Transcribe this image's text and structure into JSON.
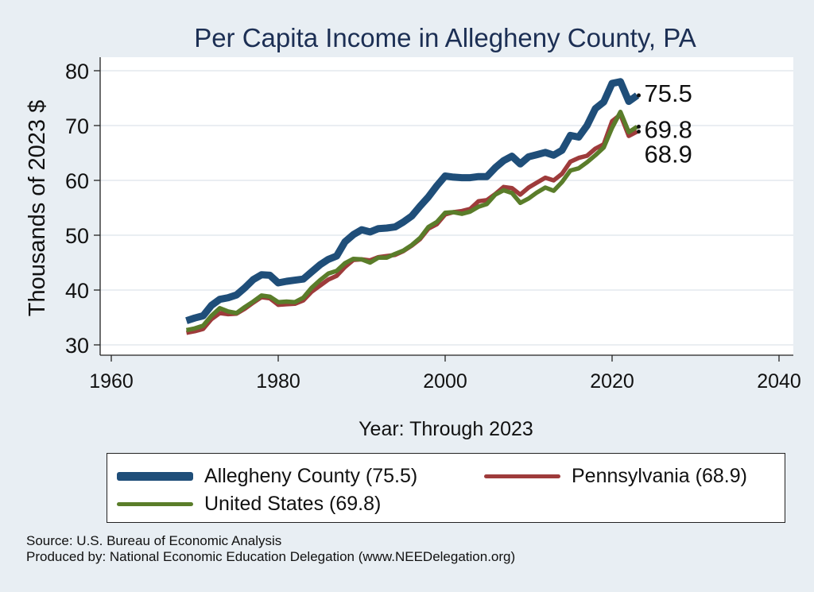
{
  "chart_data": {
    "type": "line",
    "title": "Per Capita Income in Allegheny County, PA",
    "xlabel": "Year: Through 2023",
    "ylabel": "Thousands of 2023 $",
    "xlim": [
      1960,
      2040
    ],
    "ylim": [
      30,
      80
    ],
    "xticks": [
      1960,
      1980,
      2000,
      2020,
      2040
    ],
    "yticks": [
      30,
      40,
      50,
      60,
      70,
      80
    ],
    "grid": true,
    "legend_position": "bottom",
    "x": [
      1969,
      1970,
      1971,
      1972,
      1973,
      1974,
      1975,
      1976,
      1977,
      1978,
      1979,
      1980,
      1981,
      1982,
      1983,
      1984,
      1985,
      1986,
      1987,
      1988,
      1989,
      1990,
      1991,
      1992,
      1993,
      1994,
      1995,
      1996,
      1997,
      1998,
      1999,
      2000,
      2001,
      2002,
      2003,
      2004,
      2005,
      2006,
      2007,
      2008,
      2009,
      2010,
      2011,
      2012,
      2013,
      2014,
      2015,
      2016,
      2017,
      2018,
      2019,
      2020,
      2021,
      2022,
      2023
    ],
    "series": [
      {
        "name": "Allegheny County (75.5)",
        "color": "#1f4e79",
        "values": [
          34.4,
          34.9,
          35.3,
          37.2,
          38.3,
          38.6,
          39.1,
          40.4,
          41.9,
          42.8,
          42.7,
          41.3,
          41.6,
          41.8,
          42.0,
          43.3,
          44.6,
          45.6,
          46.2,
          48.8,
          50.1,
          51.0,
          50.6,
          51.2,
          51.3,
          51.5,
          52.4,
          53.5,
          55.3,
          57.0,
          59.0,
          60.8,
          60.6,
          60.5,
          60.5,
          60.7,
          60.7,
          62.3,
          63.6,
          64.4,
          63.0,
          64.3,
          64.7,
          65.1,
          64.6,
          65.5,
          68.2,
          67.9,
          70.0,
          73.1,
          74.3,
          77.7,
          78.0,
          74.4,
          75.5
        ],
        "end_label": "75.5"
      },
      {
        "name": "Pennsylvania (68.9)",
        "color": "#9e3b3b",
        "values": [
          32.2,
          32.5,
          32.9,
          34.7,
          35.8,
          35.6,
          35.7,
          36.6,
          37.7,
          38.7,
          38.5,
          37.3,
          37.4,
          37.5,
          38.1,
          39.7,
          40.8,
          41.9,
          42.6,
          44.2,
          45.5,
          45.6,
          45.4,
          46.0,
          46.2,
          46.4,
          47.1,
          48.1,
          49.3,
          51.2,
          52.0,
          53.8,
          54.2,
          54.4,
          54.8,
          56.2,
          56.4,
          57.5,
          58.8,
          58.6,
          57.4,
          58.7,
          59.6,
          60.5,
          60.0,
          61.2,
          63.4,
          64.1,
          64.5,
          65.8,
          66.6,
          70.8,
          72.0,
          68.1,
          68.9
        ],
        "end_label": "68.9"
      },
      {
        "name": "United States (69.8)",
        "color": "#5a7d2a",
        "values": [
          32.7,
          33.0,
          33.5,
          35.3,
          36.7,
          36.1,
          35.8,
          36.9,
          37.9,
          39.0,
          38.8,
          37.8,
          37.9,
          37.8,
          38.6,
          40.4,
          41.8,
          43.0,
          43.5,
          44.9,
          45.7,
          45.6,
          45.0,
          45.9,
          45.9,
          46.6,
          47.2,
          48.2,
          49.5,
          51.5,
          52.4,
          54.1,
          54.2,
          53.9,
          54.3,
          55.2,
          55.7,
          57.4,
          58.2,
          57.7,
          55.9,
          56.7,
          57.8,
          58.7,
          58.1,
          59.7,
          61.8,
          62.2,
          63.3,
          64.6,
          66.0,
          69.6,
          72.5,
          68.8,
          69.8
        ],
        "end_label": "69.8"
      }
    ]
  },
  "legend": {
    "items": [
      {
        "label": "Allegheny County (75.5)",
        "color": "#1f4e79"
      },
      {
        "label": "Pennsylvania (68.9)",
        "color": "#9e3b3b"
      },
      {
        "label": "United States (69.8)",
        "color": "#5a7d2a"
      }
    ]
  },
  "notes": {
    "source": "Source: U.S. Bureau of Economic Analysis",
    "produced_by": "Produced by: National Economic Education Delegation (www.NEEDelegation.org)"
  }
}
